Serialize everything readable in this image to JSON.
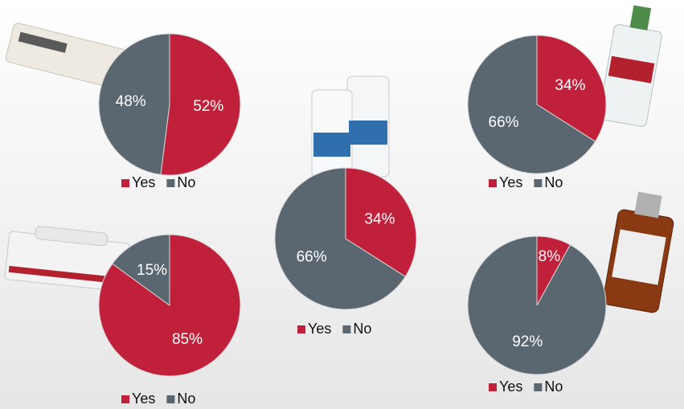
{
  "chart_data": [
    {
      "type": "pie",
      "categories": [
        "Yes",
        "No"
      ],
      "values": [
        52,
        48
      ],
      "value_labels": [
        "52%",
        "48%"
      ],
      "colors": [
        "#c0203a",
        "#5a6771"
      ]
    },
    {
      "type": "pie",
      "categories": [
        "Yes",
        "No"
      ],
      "values": [
        34,
        66
      ],
      "value_labels": [
        "34%",
        "66%"
      ],
      "colors": [
        "#c0203a",
        "#5a6771"
      ]
    },
    {
      "type": "pie",
      "categories": [
        "Yes",
        "No"
      ],
      "values": [
        34,
        66
      ],
      "value_labels": [
        "34%",
        "66%"
      ],
      "colors": [
        "#c0203a",
        "#5a6771"
      ]
    },
    {
      "type": "pie",
      "categories": [
        "Yes",
        "No"
      ],
      "values": [
        85,
        15
      ],
      "value_labels": [
        "85%",
        "15%"
      ],
      "colors": [
        "#c0203a",
        "#5a6771"
      ]
    },
    {
      "type": "pie",
      "categories": [
        "Yes",
        "No"
      ],
      "values": [
        8,
        92
      ],
      "value_labels": [
        "8%",
        "92%"
      ],
      "colors": [
        "#c0203a",
        "#5a6771"
      ]
    }
  ]
}
